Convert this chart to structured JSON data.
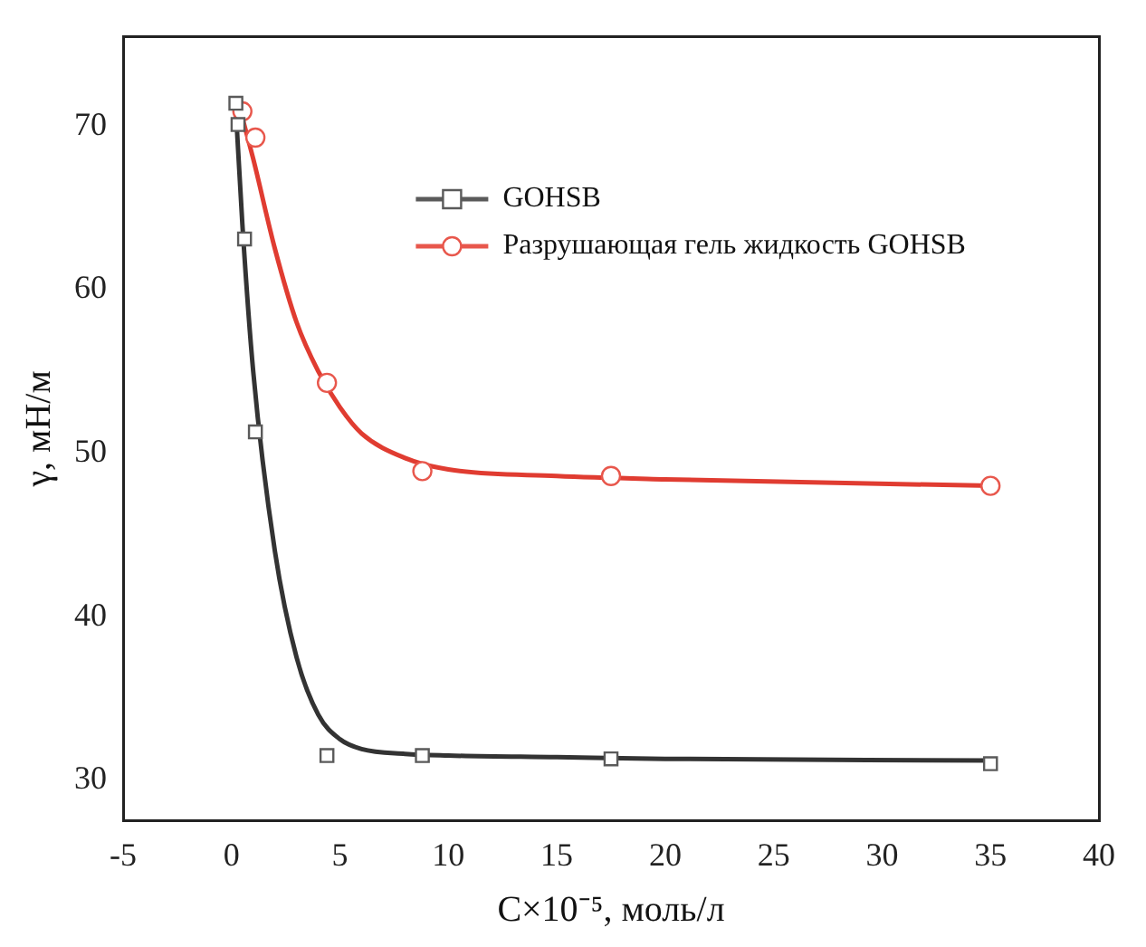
{
  "chart_data": {
    "type": "scatter",
    "xlabel": "C×10⁻⁵, моль/л",
    "ylabel": "γ, мН/м",
    "xlim": [
      -5,
      40
    ],
    "xticks": [
      -5,
      0,
      5,
      10,
      15,
      20,
      25,
      30,
      35,
      40
    ],
    "ylim": [
      27.5,
      75.5
    ],
    "yticks": [
      30,
      40,
      50,
      60,
      70
    ],
    "grid": false,
    "legend": "top right",
    "series": [
      {
        "name": "GOHSB",
        "type": "scatter",
        "marker": "square",
        "color": "#5a5a5a",
        "x": [
          0.2,
          0.3,
          0.6,
          1.1,
          4.4,
          8.8,
          17.5,
          35
        ],
        "values": [
          71.4,
          70.1,
          63.1,
          51.3,
          31.5,
          31.5,
          31.3,
          31.0
        ]
      },
      {
        "name": "Разрушающая гель жидкость GOHSB",
        "type": "scatter",
        "marker": "circle",
        "color": "#e8574c",
        "x": [
          0.5,
          1.1,
          4.4,
          8.8,
          17.5,
          35
        ],
        "values": [
          70.9,
          69.3,
          54.3,
          48.9,
          48.6,
          48.0
        ]
      },
      {
        "type": "line",
        "marker": "none",
        "color": "#333333",
        "x": [
          0.2,
          0.5,
          1,
          2,
          3,
          4,
          5,
          6,
          8,
          10,
          15,
          20,
          35
        ],
        "values": [
          71,
          64,
          55,
          44,
          37.5,
          34,
          32.5,
          31.9,
          31.6,
          31.5,
          31.4,
          31.3,
          31.2
        ]
      },
      {
        "type": "line",
        "marker": "none",
        "color": "#e03c31",
        "x": [
          0.3,
          1,
          2,
          3,
          4,
          5,
          6,
          8,
          10,
          15,
          20,
          35
        ],
        "values": [
          71.5,
          68,
          62.5,
          58,
          55,
          52.8,
          51.2,
          49.7,
          49.0,
          48.6,
          48.4,
          48.0
        ]
      }
    ]
  }
}
